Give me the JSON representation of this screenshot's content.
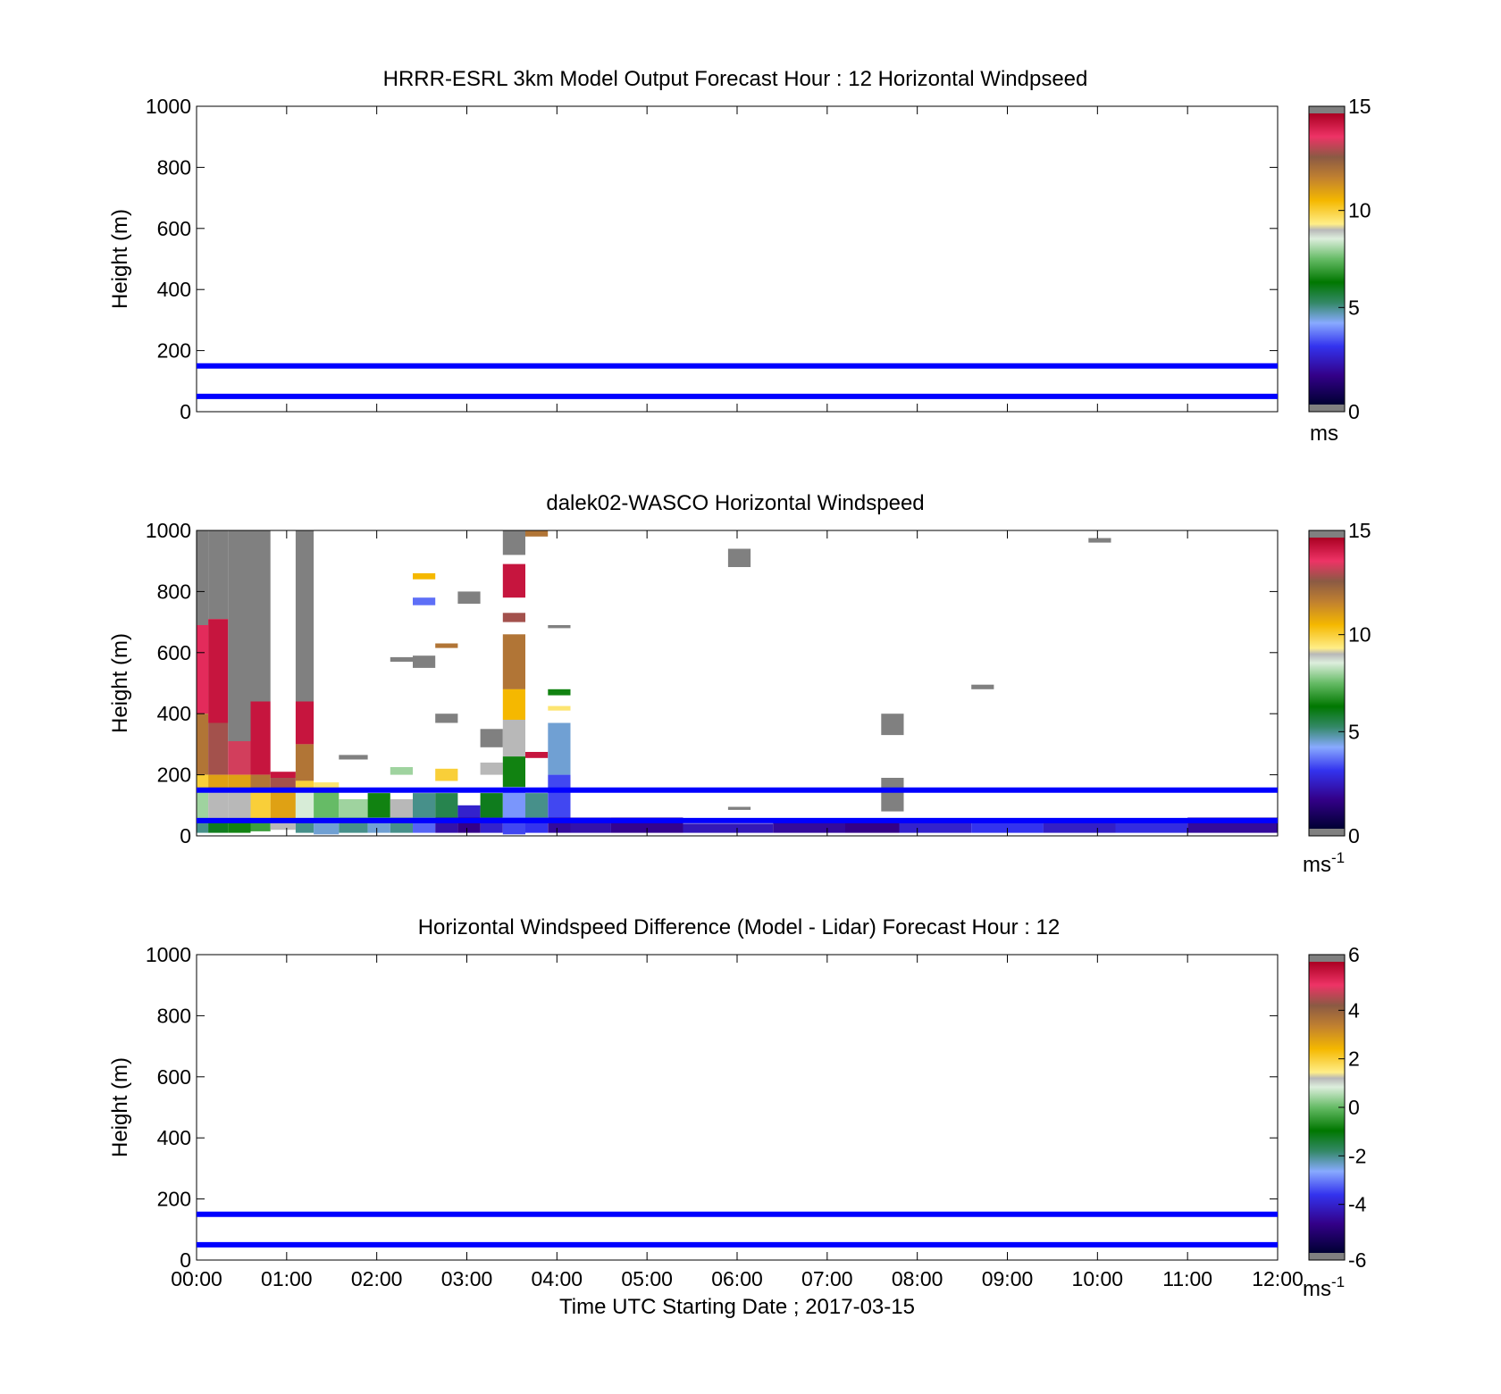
{
  "panels": [
    {
      "title": "HRRR-ESRL 3km Model Output   Forecast Hour : 12 Horizontal Windpseed",
      "ylabel": "Height (m)",
      "y_ticks": [
        "0",
        "200",
        "400",
        "600",
        "800",
        "1000"
      ],
      "colorbar": {
        "ticks": [
          "0",
          "5",
          "10",
          "15"
        ],
        "unit": "ms",
        "unit_sup": ""
      },
      "show_x_tick_labels": false
    },
    {
      "title": "dalek02-WASCO  Horizontal Windspeed",
      "ylabel": "Height (m)",
      "y_ticks": [
        "0",
        "200",
        "400",
        "600",
        "800",
        "1000"
      ],
      "colorbar": {
        "ticks": [
          "0",
          "5",
          "10",
          "15"
        ],
        "unit": "ms",
        "unit_sup": "-1"
      },
      "show_x_tick_labels": false
    },
    {
      "title": "Horizontal Windspeed Difference (Model - Lidar) Forecast Hour : 12",
      "ylabel": "Height (m)",
      "y_ticks": [
        "0",
        "200",
        "400",
        "600",
        "800",
        "1000"
      ],
      "colorbar": {
        "ticks": [
          "-6",
          "-4",
          "-2",
          "0",
          "2",
          "4",
          "6"
        ],
        "unit": "ms",
        "unit_sup": "-1"
      },
      "show_x_tick_labels": true
    }
  ],
  "x_ticks": [
    "00:00",
    "01:00",
    "02:00",
    "03:00",
    "04:00",
    "05:00",
    "06:00",
    "07:00",
    "08:00",
    "09:00",
    "10:00",
    "11:00",
    "12:00"
  ],
  "xlabel": "Time UTC  Starting Date ; 2017-03-15",
  "chart_data": [
    {
      "type": "heatmap",
      "title": "HRRR-ESRL 3km Model Output   Forecast Hour : 12 Horizontal Windpseed",
      "xlabel": "",
      "ylabel": "Height (m)",
      "xlim": [
        0,
        12
      ],
      "ylim": [
        0,
        1000
      ],
      "clim": [
        0,
        15
      ],
      "reference_lines_m": [
        50,
        150
      ],
      "cells": []
    },
    {
      "type": "heatmap",
      "title": "dalek02-WASCO  Horizontal Windspeed",
      "xlabel": "",
      "ylabel": "Height (m)",
      "xlim": [
        0,
        12
      ],
      "ylim": [
        0,
        1000
      ],
      "clim": [
        0,
        15
      ],
      "reference_lines_m": [
        50,
        150
      ],
      "cells": [
        {
          "t0": 0.0,
          "t1": 0.13,
          "h0": 690,
          "h1": 1000,
          "v": 16
        },
        {
          "t0": 0.0,
          "t1": 0.13,
          "h0": 400,
          "h1": 690,
          "v": 14
        },
        {
          "t0": 0.0,
          "t1": 0.13,
          "h0": 200,
          "h1": 400,
          "v": 12
        },
        {
          "t0": 0.0,
          "t1": 0.13,
          "h0": 150,
          "h1": 200,
          "v": 10
        },
        {
          "t0": 0.0,
          "t1": 0.13,
          "h0": 50,
          "h1": 150,
          "v": 8
        },
        {
          "t0": 0.0,
          "t1": 0.13,
          "h0": 10,
          "h1": 50,
          "v": 5
        },
        {
          "t0": 0.13,
          "t1": 0.35,
          "h0": 710,
          "h1": 1000,
          "v": 16
        },
        {
          "t0": 0.13,
          "t1": 0.35,
          "h0": 370,
          "h1": 710,
          "v": 14.5
        },
        {
          "t0": 0.13,
          "t1": 0.35,
          "h0": 200,
          "h1": 370,
          "v": 13
        },
        {
          "t0": 0.13,
          "t1": 0.35,
          "h0": 150,
          "h1": 200,
          "v": 11
        },
        {
          "t0": 0.13,
          "t1": 0.35,
          "h0": 50,
          "h1": 150,
          "v": 9
        },
        {
          "t0": 0.13,
          "t1": 0.35,
          "h0": 10,
          "h1": 50,
          "v": 6
        },
        {
          "t0": 0.35,
          "t1": 0.6,
          "h0": 310,
          "h1": 1000,
          "v": 16
        },
        {
          "t0": 0.35,
          "t1": 0.6,
          "h0": 200,
          "h1": 310,
          "v": 13.5
        },
        {
          "t0": 0.35,
          "t1": 0.6,
          "h0": 150,
          "h1": 200,
          "v": 11
        },
        {
          "t0": 0.35,
          "t1": 0.6,
          "h0": 50,
          "h1": 150,
          "v": 9
        },
        {
          "t0": 0.35,
          "t1": 0.6,
          "h0": 10,
          "h1": 50,
          "v": 6.5
        },
        {
          "t0": 0.6,
          "t1": 0.82,
          "h0": 440,
          "h1": 1000,
          "v": 16
        },
        {
          "t0": 0.6,
          "t1": 0.82,
          "h0": 200,
          "h1": 440,
          "v": 14.5
        },
        {
          "t0": 0.6,
          "t1": 0.82,
          "h0": 150,
          "h1": 200,
          "v": 12
        },
        {
          "t0": 0.6,
          "t1": 0.82,
          "h0": 50,
          "h1": 150,
          "v": 10
        },
        {
          "t0": 0.6,
          "t1": 0.82,
          "h0": 15,
          "h1": 50,
          "v": 7
        },
        {
          "t0": 0.82,
          "t1": 1.1,
          "h0": 190,
          "h1": 210,
          "v": 14.5
        },
        {
          "t0": 0.82,
          "t1": 1.1,
          "h0": 150,
          "h1": 190,
          "v": 13
        },
        {
          "t0": 0.82,
          "t1": 1.1,
          "h0": 50,
          "h1": 150,
          "v": 11
        },
        {
          "t0": 0.82,
          "t1": 1.1,
          "h0": 20,
          "h1": 50,
          "v": 9
        },
        {
          "t0": 1.1,
          "t1": 1.3,
          "h0": 440,
          "h1": 1000,
          "v": 16
        },
        {
          "t0": 1.1,
          "t1": 1.3,
          "h0": 300,
          "h1": 440,
          "v": 14.5
        },
        {
          "t0": 1.1,
          "t1": 1.3,
          "h0": 180,
          "h1": 300,
          "v": 12
        },
        {
          "t0": 1.1,
          "t1": 1.3,
          "h0": 150,
          "h1": 180,
          "v": 10
        },
        {
          "t0": 1.1,
          "t1": 1.3,
          "h0": 50,
          "h1": 150,
          "v": 8.5
        },
        {
          "t0": 1.1,
          "t1": 1.3,
          "h0": 10,
          "h1": 50,
          "v": 5
        },
        {
          "t0": 1.3,
          "t1": 1.58,
          "h0": 150,
          "h1": 175,
          "v": 9.5
        },
        {
          "t0": 1.3,
          "t1": 1.58,
          "h0": 60,
          "h1": 150,
          "v": 7.5
        },
        {
          "t0": 1.3,
          "t1": 1.58,
          "h0": 5,
          "h1": 60,
          "v": 4.5
        },
        {
          "t0": 1.58,
          "t1": 1.9,
          "h0": 250,
          "h1": 265,
          "v": 16
        },
        {
          "t0": 1.58,
          "t1": 1.9,
          "h0": 60,
          "h1": 120,
          "v": 8
        },
        {
          "t0": 1.58,
          "t1": 1.9,
          "h0": 10,
          "h1": 60,
          "v": 5
        },
        {
          "t0": 1.9,
          "t1": 2.15,
          "h0": 60,
          "h1": 140,
          "v": 6.5
        },
        {
          "t0": 1.9,
          "t1": 2.15,
          "h0": 10,
          "h1": 60,
          "v": 4.5
        },
        {
          "t0": 2.15,
          "t1": 2.4,
          "h0": 570,
          "h1": 585,
          "v": 16
        },
        {
          "t0": 2.15,
          "t1": 2.4,
          "h0": 200,
          "h1": 225,
          "v": 8
        },
        {
          "t0": 2.15,
          "t1": 2.4,
          "h0": 60,
          "h1": 120,
          "v": 9
        },
        {
          "t0": 2.15,
          "t1": 2.4,
          "h0": 10,
          "h1": 60,
          "v": 5
        },
        {
          "t0": 2.4,
          "t1": 2.65,
          "h0": 840,
          "h1": 860,
          "v": 10.5
        },
        {
          "t0": 2.4,
          "t1": 2.65,
          "h0": 755,
          "h1": 780,
          "v": 3.6
        },
        {
          "t0": 2.4,
          "t1": 2.65,
          "h0": 550,
          "h1": 590,
          "v": 16
        },
        {
          "t0": 2.4,
          "t1": 2.65,
          "h0": 60,
          "h1": 140,
          "v": 5
        },
        {
          "t0": 2.4,
          "t1": 2.65,
          "h0": 10,
          "h1": 60,
          "v": 3.5
        },
        {
          "t0": 2.65,
          "t1": 2.9,
          "h0": 615,
          "h1": 630,
          "v": 12
        },
        {
          "t0": 2.65,
          "t1": 2.9,
          "h0": 370,
          "h1": 400,
          "v": 16
        },
        {
          "t0": 2.65,
          "t1": 2.9,
          "h0": 180,
          "h1": 220,
          "v": 10
        },
        {
          "t0": 2.65,
          "t1": 2.9,
          "h0": 60,
          "h1": 140,
          "v": 5.5
        },
        {
          "t0": 2.65,
          "t1": 2.9,
          "h0": 10,
          "h1": 60,
          "v": 2
        },
        {
          "t0": 2.9,
          "t1": 3.15,
          "h0": 760,
          "h1": 800,
          "v": 16
        },
        {
          "t0": 2.9,
          "t1": 3.15,
          "h0": 60,
          "h1": 100,
          "v": 2.5
        },
        {
          "t0": 2.9,
          "t1": 3.15,
          "h0": 10,
          "h1": 60,
          "v": 1.5
        },
        {
          "t0": 3.15,
          "t1": 3.4,
          "h0": 290,
          "h1": 350,
          "v": 16
        },
        {
          "t0": 3.15,
          "t1": 3.4,
          "h0": 200,
          "h1": 240,
          "v": 9
        },
        {
          "t0": 3.15,
          "t1": 3.4,
          "h0": 60,
          "h1": 140,
          "v": 6
        },
        {
          "t0": 3.15,
          "t1": 3.4,
          "h0": 10,
          "h1": 60,
          "v": 2.5
        },
        {
          "t0": 3.4,
          "t1": 3.65,
          "h0": 920,
          "h1": 1000,
          "v": 16
        },
        {
          "t0": 3.4,
          "t1": 3.65,
          "h0": 780,
          "h1": 890,
          "v": 14.5
        },
        {
          "t0": 3.4,
          "t1": 3.65,
          "h0": 700,
          "h1": 730,
          "v": 13
        },
        {
          "t0": 3.4,
          "t1": 3.65,
          "h0": 480,
          "h1": 660,
          "v": 12
        },
        {
          "t0": 3.4,
          "t1": 3.65,
          "h0": 380,
          "h1": 480,
          "v": 10.5
        },
        {
          "t0": 3.4,
          "t1": 3.65,
          "h0": 260,
          "h1": 380,
          "v": 9
        },
        {
          "t0": 3.4,
          "t1": 3.65,
          "h0": 160,
          "h1": 260,
          "v": 6.5
        },
        {
          "t0": 3.4,
          "t1": 3.65,
          "h0": 60,
          "h1": 160,
          "v": 4
        },
        {
          "t0": 3.4,
          "t1": 3.65,
          "h0": 5,
          "h1": 60,
          "v": 3.2
        },
        {
          "t0": 3.65,
          "t1": 3.9,
          "h0": 980,
          "h1": 1000,
          "v": 12
        },
        {
          "t0": 3.65,
          "t1": 3.9,
          "h0": 255,
          "h1": 275,
          "v": 14.5
        },
        {
          "t0": 3.65,
          "t1": 3.9,
          "h0": 60,
          "h1": 140,
          "v": 5
        },
        {
          "t0": 3.65,
          "t1": 3.9,
          "h0": 10,
          "h1": 60,
          "v": 3
        },
        {
          "t0": 3.9,
          "t1": 4.15,
          "h0": 680,
          "h1": 690,
          "v": 16
        },
        {
          "t0": 3.9,
          "t1": 4.15,
          "h0": 460,
          "h1": 480,
          "v": 6.5
        },
        {
          "t0": 3.9,
          "t1": 4.15,
          "h0": 410,
          "h1": 425,
          "v": 9.5
        },
        {
          "t0": 3.9,
          "t1": 4.15,
          "h0": 200,
          "h1": 370,
          "v": 4.5
        },
        {
          "t0": 3.9,
          "t1": 4.15,
          "h0": 60,
          "h1": 200,
          "v": 3.2
        },
        {
          "t0": 3.9,
          "t1": 4.15,
          "h0": 10,
          "h1": 60,
          "v": 1.8
        },
        {
          "t0": 4.15,
          "t1": 4.6,
          "h0": 10,
          "h1": 60,
          "v": 2
        },
        {
          "t0": 4.6,
          "t1": 5.4,
          "h0": 10,
          "h1": 60,
          "v": 1.6
        },
        {
          "t0": 5.9,
          "t1": 6.15,
          "h0": 880,
          "h1": 940,
          "v": 16
        },
        {
          "t0": 5.9,
          "t1": 6.15,
          "h0": 85,
          "h1": 95,
          "v": 16
        },
        {
          "t0": 5.4,
          "t1": 6.4,
          "h0": 10,
          "h1": 40,
          "v": 2.2
        },
        {
          "t0": 6.4,
          "t1": 7.2,
          "h0": 10,
          "h1": 50,
          "v": 1.8
        },
        {
          "t0": 7.2,
          "t1": 7.8,
          "h0": 10,
          "h1": 45,
          "v": 1.5
        },
        {
          "t0": 7.6,
          "t1": 7.85,
          "h0": 330,
          "h1": 400,
          "v": 16
        },
        {
          "t0": 7.6,
          "t1": 7.85,
          "h0": 80,
          "h1": 190,
          "v": 16
        },
        {
          "t0": 7.8,
          "t1": 8.6,
          "h0": 10,
          "h1": 45,
          "v": 2.5
        },
        {
          "t0": 8.6,
          "t1": 9.4,
          "h0": 10,
          "h1": 50,
          "v": 3
        },
        {
          "t0": 8.6,
          "t1": 8.85,
          "h0": 480,
          "h1": 495,
          "v": 16
        },
        {
          "t0": 9.4,
          "t1": 10.2,
          "h0": 10,
          "h1": 50,
          "v": 2.4
        },
        {
          "t0": 9.9,
          "t1": 10.15,
          "h0": 960,
          "h1": 975,
          "v": 16
        },
        {
          "t0": 10.2,
          "t1": 11.0,
          "h0": 10,
          "h1": 50,
          "v": 2.8
        },
        {
          "t0": 11.0,
          "t1": 12.0,
          "h0": 10,
          "h1": 60,
          "v": 1.8
        }
      ]
    },
    {
      "type": "heatmap",
      "title": "Horizontal Windspeed Difference (Model - Lidar) Forecast Hour : 12",
      "xlabel": "Time UTC  Starting Date ; 2017-03-15",
      "ylabel": "Height (m)",
      "xlim": [
        0,
        12
      ],
      "ylim": [
        0,
        1000
      ],
      "clim": [
        -6,
        6
      ],
      "reference_lines_m": [
        50,
        150
      ],
      "cells": []
    }
  ],
  "colors": {
    "reference_line": "#0000ff",
    "out_of_range": "#808080",
    "axes": "#000000"
  }
}
